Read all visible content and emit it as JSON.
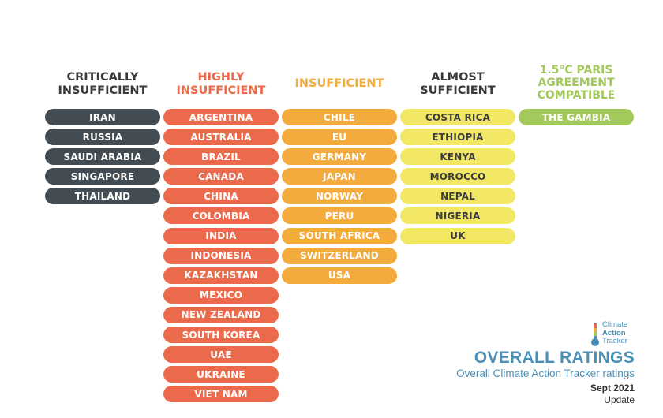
{
  "colors": {
    "critically_insufficient": "#424c52",
    "highly_insufficient": "#ec6a4c",
    "insufficient": "#f3ab3d",
    "almost_sufficient": "#f2e866",
    "paris_compatible": "#a3c85b",
    "accent_blue": "#4a8fb5"
  },
  "categories": [
    {
      "heading": "CRITICALLY\nINSUFFICIENT",
      "heading_color": "#3a3a3a",
      "countries": [
        "IRAN",
        "RUSSIA",
        "SAUDI ARABIA",
        "SINGAPORE",
        "THAILAND"
      ]
    },
    {
      "heading": "HIGHLY\nINSUFFICIENT",
      "heading_color": "#ec6a4c",
      "countries": [
        "ARGENTINA",
        "AUSTRALIA",
        "BRAZIL",
        "CANADA",
        "CHINA",
        "COLOMBIA",
        "INDIA",
        "INDONESIA",
        "KAZAKHSTAN",
        "MEXICO",
        "NEW ZEALAND",
        "SOUTH KOREA",
        "UAE",
        "UKRAINE",
        "VIET NAM"
      ]
    },
    {
      "heading": "INSUFFICIENT",
      "heading_color": "#f3ab3d",
      "countries": [
        "CHILE",
        "EU",
        "GERMANY",
        "JAPAN",
        "NORWAY",
        "PERU",
        "SOUTH AFRICA",
        "SWITZERLAND",
        "USA"
      ]
    },
    {
      "heading": "ALMOST\nSUFFICIENT",
      "heading_color": "#3a3a3a",
      "countries": [
        "COSTA RICA",
        "ETHIOPIA",
        "KENYA",
        "MOROCCO",
        "NEPAL",
        "NIGERIA",
        "UK"
      ]
    },
    {
      "heading": "1.5°C PARIS\nAGREEMENT\nCOMPATIBLE",
      "heading_color": "#a3c85b",
      "countries": [
        "THE GAMBIA"
      ]
    }
  ],
  "logo": {
    "icon": "thermometer-icon",
    "line1": "Climate",
    "line2": "Action",
    "line3": "Tracker"
  },
  "footer": {
    "title": "OVERALL RATINGS",
    "subtitle": "Overall Climate Action Tracker ratings",
    "date": "Sept 2021",
    "update": "Update"
  }
}
